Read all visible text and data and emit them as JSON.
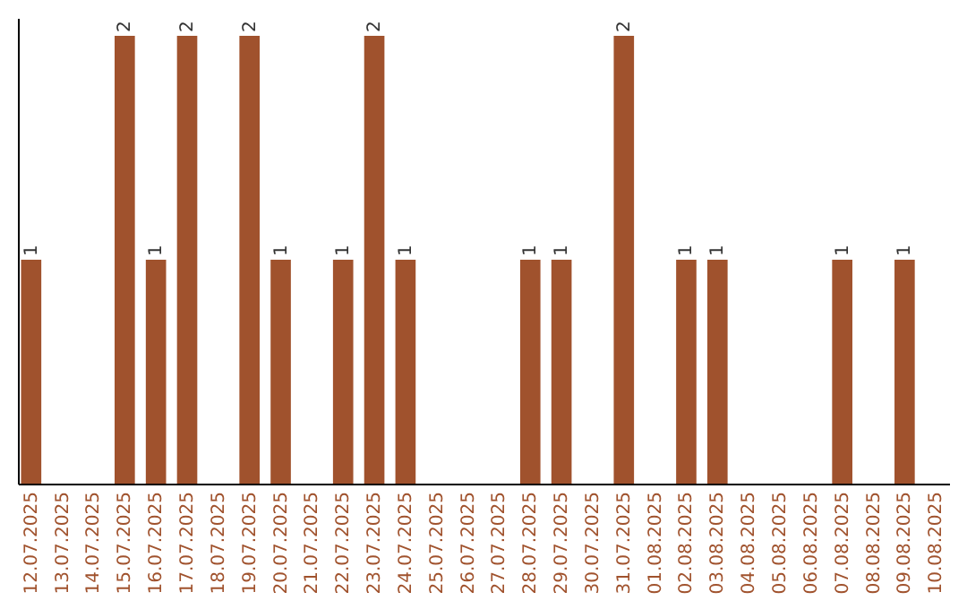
{
  "chart_data": {
    "type": "bar",
    "categories": [
      "12.07.2025",
      "13.07.2025",
      "14.07.2025",
      "15.07.2025",
      "16.07.2025",
      "17.07.2025",
      "18.07.2025",
      "19.07.2025",
      "20.07.2025",
      "21.07.2025",
      "22.07.2025",
      "23.07.2025",
      "24.07.2025",
      "25.07.2025",
      "26.07.2025",
      "27.07.2025",
      "28.07.2025",
      "29.07.2025",
      "30.07.2025",
      "31.07.2025",
      "01.08.2025",
      "02.08.2025",
      "03.08.2025",
      "04.08.2025",
      "05.08.2025",
      "06.08.2025",
      "07.08.2025",
      "08.08.2025",
      "09.08.2025",
      "10.08.2025"
    ],
    "values": [
      1,
      0,
      0,
      2,
      1,
      2,
      0,
      2,
      1,
      0,
      1,
      2,
      1,
      0,
      0,
      0,
      1,
      1,
      0,
      2,
      0,
      1,
      1,
      0,
      0,
      0,
      1,
      0,
      1,
      0
    ],
    "value_labels": [
      "1",
      null,
      null,
      "2",
      "1",
      "2",
      null,
      "2",
      "1",
      null,
      "1",
      "2",
      "1",
      null,
      null,
      null,
      "1",
      "1",
      null,
      "2",
      null,
      "1",
      "1",
      null,
      null,
      null,
      "1",
      null,
      "1",
      null
    ],
    "color": "#a0522d",
    "ylim": [
      0,
      2.08
    ],
    "tick_labels": "x"
  }
}
